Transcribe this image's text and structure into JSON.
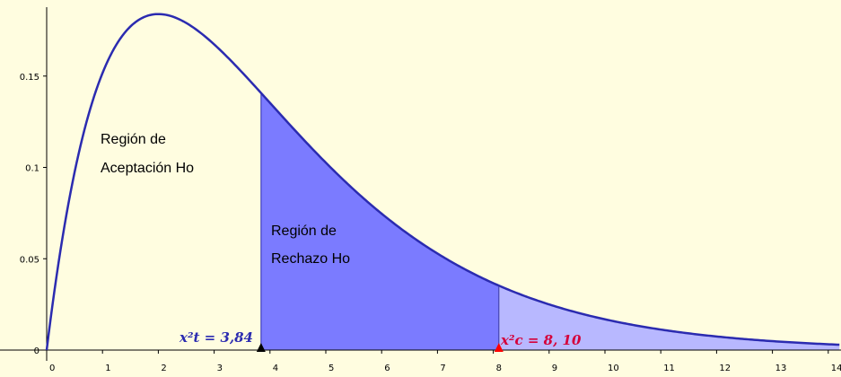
{
  "chart_data": {
    "type": "area",
    "title": "",
    "xlabel": "",
    "ylabel": "",
    "distribution": "chi-square",
    "degrees_of_freedom": 4,
    "xlim": [
      -0.25,
      14.2
    ],
    "ylim": [
      -0.008,
      0.19
    ],
    "x_ticks": [
      0,
      1,
      2,
      3,
      4,
      5,
      6,
      7,
      8,
      9,
      10,
      11,
      12,
      13,
      14
    ],
    "y_ticks": [
      0,
      0.05,
      0.1,
      0.15
    ],
    "y_tick_labels": [
      "0",
      "0.05",
      "0.1",
      "0.15"
    ],
    "curve": {
      "x": [
        0,
        0.25,
        0.5,
        1,
        1.5,
        2,
        2.5,
        3,
        3.5,
        3.84,
        4,
        4.5,
        5,
        5.5,
        6,
        7,
        8,
        8.1,
        9,
        10,
        11,
        12,
        13,
        14
      ],
      "y": [
        0,
        0.0551,
        0.0974,
        0.1516,
        0.1771,
        0.1839,
        0.1791,
        0.1673,
        0.1519,
        0.1404,
        0.1353,
        0.1186,
        0.1026,
        0.0879,
        0.0747,
        0.0528,
        0.0366,
        0.0353,
        0.025,
        0.0168,
        0.0112,
        0.0074,
        0.0049,
        0.0032
      ],
      "color": "#2b2bb0"
    },
    "critical_values": {
      "tabulated": {
        "x": 3.84,
        "label": "x²t = 3,84",
        "color": "#2b2bb0",
        "marker_color": "#000000"
      },
      "calculated": {
        "x": 8.1,
        "label": "x²c = 8, 10",
        "color": "#d4003a",
        "marker_color": "#ff0000"
      }
    },
    "shaded_regions": [
      {
        "from": 3.84,
        "to": 8.1,
        "color": "#7b7bff"
      },
      {
        "from": 8.1,
        "to": 14.2,
        "color": "#b8b8ff"
      }
    ],
    "annotations": {
      "acceptance": [
        "Región de",
        "Aceptación Ho"
      ],
      "rejection": [
        "Región de",
        "Rechazo Ho"
      ]
    },
    "grid": false,
    "legend": "none"
  }
}
